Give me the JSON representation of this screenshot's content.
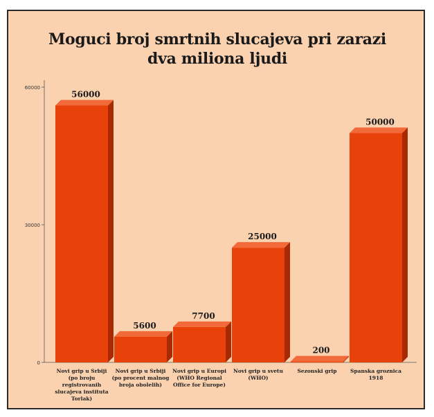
{
  "chart_data": {
    "type": "bar",
    "title_lines": [
      "Moguci broj smrtnih slucajeva pri zarazi",
      "dva miliona ljudi"
    ],
    "categories": [
      "Novi grip u Srbiji (po broju registrovanih slucajeva instituta Torlak)",
      "Novi grip u Srbiji (po procent malnog broja obolelih)",
      "Novi grip u Europi (WHO Regional Office for Europe)",
      "Novi grip u svetu (WHO)",
      "Sezonski grip",
      "Spanska groznica 1918"
    ],
    "values": [
      56000,
      5600,
      7700,
      25000,
      200,
      50000
    ],
    "value_labels": [
      "56000",
      "5600",
      "7700",
      "25000",
      "200",
      "50000"
    ],
    "ytick_values": [
      0,
      30000,
      60000
    ],
    "ytick_labels": [
      "0",
      "30000",
      "60000"
    ],
    "ylim": [
      0,
      60000
    ],
    "bar_color": "#e8420a",
    "bar_side_color": "#a82a05",
    "bar_top_color": "#f26a3a",
    "background_color": "#fbd2b0",
    "grid": false,
    "legend": "none"
  }
}
